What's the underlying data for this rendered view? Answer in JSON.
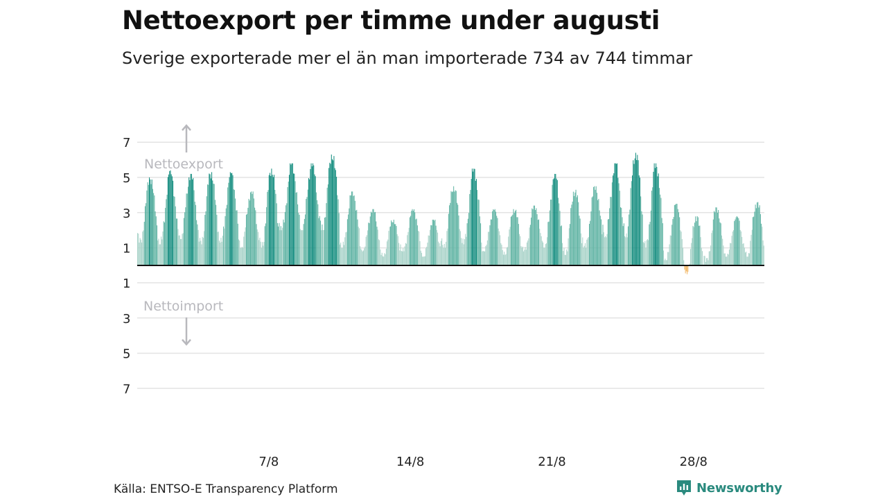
{
  "header": {
    "title": "Nettoexport per timme under augusti",
    "subtitle": "Sverige exporterade mer el än man importerade 734 av 744 timmar"
  },
  "footer": {
    "source": "Källa: ENTSO-E Transparency Platform",
    "brand": "Newsworthy"
  },
  "colors": {
    "export_dark": "#128c7e",
    "export_mid": "#5fb3a3",
    "export_light": "#a9d3c9",
    "import": "#f2b866",
    "gridline": "#e3e3e3",
    "zero_line": "#111111",
    "direction_label": "#b8b8bd",
    "brand": "#2a8a7e"
  },
  "chart_data": {
    "type": "bar",
    "title": "Nettoexport per timme under augusti",
    "subtitle": "Sverige exporterade mer el än man importerade 734 av 744 timmar",
    "xlabel": "",
    "ylabel": "",
    "direction_labels": {
      "up": "Nettoexport",
      "down": "Nettoimport"
    },
    "x_tick_labels": [
      {
        "label": "7/8",
        "day": 7
      },
      {
        "label": "14/8",
        "day": 14
      },
      {
        "label": "21/8",
        "day": 21
      },
      {
        "label": "28/8",
        "day": 28
      }
    ],
    "y_tick_labels": [
      {
        "label": "7",
        "value": 7
      },
      {
        "label": "5",
        "value": 5
      },
      {
        "label": "3",
        "value": 3
      },
      {
        "label": "1",
        "value": 1
      },
      {
        "label": "1",
        "value": -1
      },
      {
        "label": "3",
        "value": -3
      },
      {
        "label": "5",
        "value": -5
      },
      {
        "label": "7",
        "value": -7
      }
    ],
    "ylim": [
      -7.5,
      7.5
    ],
    "hours_per_day": 24,
    "days": 31,
    "grid": true,
    "daily_profile": [
      {
        "day": 1,
        "min": 1.3,
        "max": 5.0
      },
      {
        "day": 2,
        "min": 1.2,
        "max": 5.4
      },
      {
        "day": 3,
        "min": 1.5,
        "max": 5.2
      },
      {
        "day": 4,
        "min": 1.2,
        "max": 5.3
      },
      {
        "day": 5,
        "min": 1.3,
        "max": 5.3
      },
      {
        "day": 6,
        "min": 1.0,
        "max": 4.2
      },
      {
        "day": 7,
        "min": 1.0,
        "max": 5.5
      },
      {
        "day": 8,
        "min": 2.0,
        "max": 5.8
      },
      {
        "day": 9,
        "min": 2.0,
        "max": 5.8
      },
      {
        "day": 10,
        "min": 2.0,
        "max": 6.3
      },
      {
        "day": 11,
        "min": 1.0,
        "max": 4.2
      },
      {
        "day": 12,
        "min": 0.8,
        "max": 3.2
      },
      {
        "day": 13,
        "min": 0.5,
        "max": 2.6
      },
      {
        "day": 14,
        "min": 0.8,
        "max": 3.2
      },
      {
        "day": 15,
        "min": 0.5,
        "max": 2.6
      },
      {
        "day": 16,
        "min": 1.0,
        "max": 4.5
      },
      {
        "day": 17,
        "min": 1.2,
        "max": 5.5
      },
      {
        "day": 18,
        "min": 0.8,
        "max": 3.2
      },
      {
        "day": 19,
        "min": 0.6,
        "max": 3.2
      },
      {
        "day": 20,
        "min": 0.8,
        "max": 3.4
      },
      {
        "day": 21,
        "min": 1.0,
        "max": 5.2
      },
      {
        "day": 22,
        "min": 0.6,
        "max": 4.3
      },
      {
        "day": 23,
        "min": 1.0,
        "max": 4.5
      },
      {
        "day": 24,
        "min": 1.6,
        "max": 5.8
      },
      {
        "day": 25,
        "min": 1.6,
        "max": 6.4
      },
      {
        "day": 26,
        "min": 1.0,
        "max": 5.8
      },
      {
        "day": 27,
        "min": 0.3,
        "max": 3.5
      },
      {
        "day": 28,
        "min": -0.5,
        "max": 2.8
      },
      {
        "day": 29,
        "min": 0.2,
        "max": 3.3
      },
      {
        "day": 30,
        "min": 0.5,
        "max": 2.8
      },
      {
        "day": 31,
        "min": 0.5,
        "max": 3.6
      }
    ]
  }
}
